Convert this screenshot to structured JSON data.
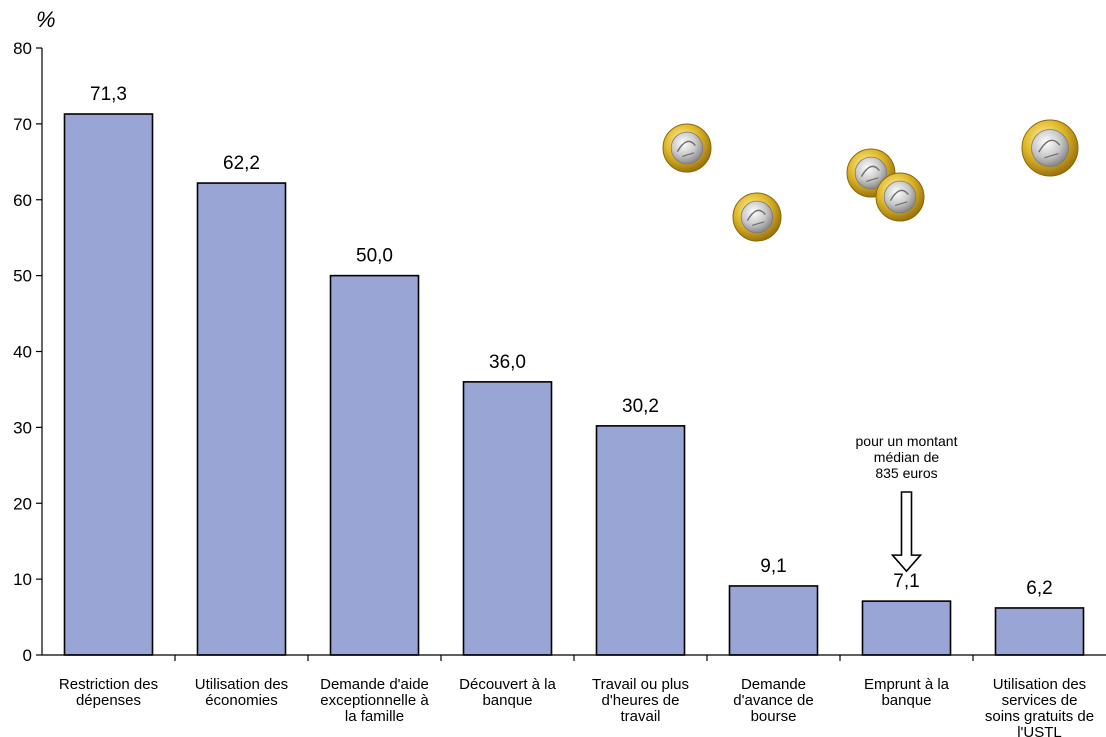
{
  "chart_data": {
    "type": "bar",
    "ylabel": "%",
    "ylim": [
      0,
      80
    ],
    "yticks": [
      0,
      10,
      20,
      30,
      40,
      50,
      60,
      70,
      80
    ],
    "grid": false,
    "legend": "none",
    "categories": [
      [
        "Restriction des",
        "dépenses"
      ],
      [
        "Utilisation des",
        "économies"
      ],
      [
        "Demande d'aide",
        "exceptionnelle à",
        "la famille"
      ],
      [
        "Découvert à la",
        "banque"
      ],
      [
        "Travail ou plus",
        "d'heures de",
        "travail"
      ],
      [
        "Demande",
        "d'avance de",
        "bourse"
      ],
      [
        "Emprunt à la",
        "banque"
      ],
      [
        "Utilisation des",
        "services de",
        "soins gratuits de",
        "l'USTL"
      ]
    ],
    "values": [
      71.3,
      62.2,
      50.0,
      36.0,
      30.2,
      9.1,
      7.1,
      6.2
    ],
    "value_labels": [
      "71,3",
      "62,2",
      "50,0",
      "36,0",
      "30,2",
      "9,1",
      "7,1",
      "6,2"
    ],
    "bar_color": "#99a5d4",
    "bar_stroke": "#000000",
    "annotation": {
      "category_index": 6,
      "lines": [
        "pour un montant",
        "médian de",
        "835 euros"
      ]
    },
    "decorations": {
      "coin_count": 5,
      "coin_color": "#e0b828",
      "coin_center_color": "#c8c8c8"
    }
  }
}
